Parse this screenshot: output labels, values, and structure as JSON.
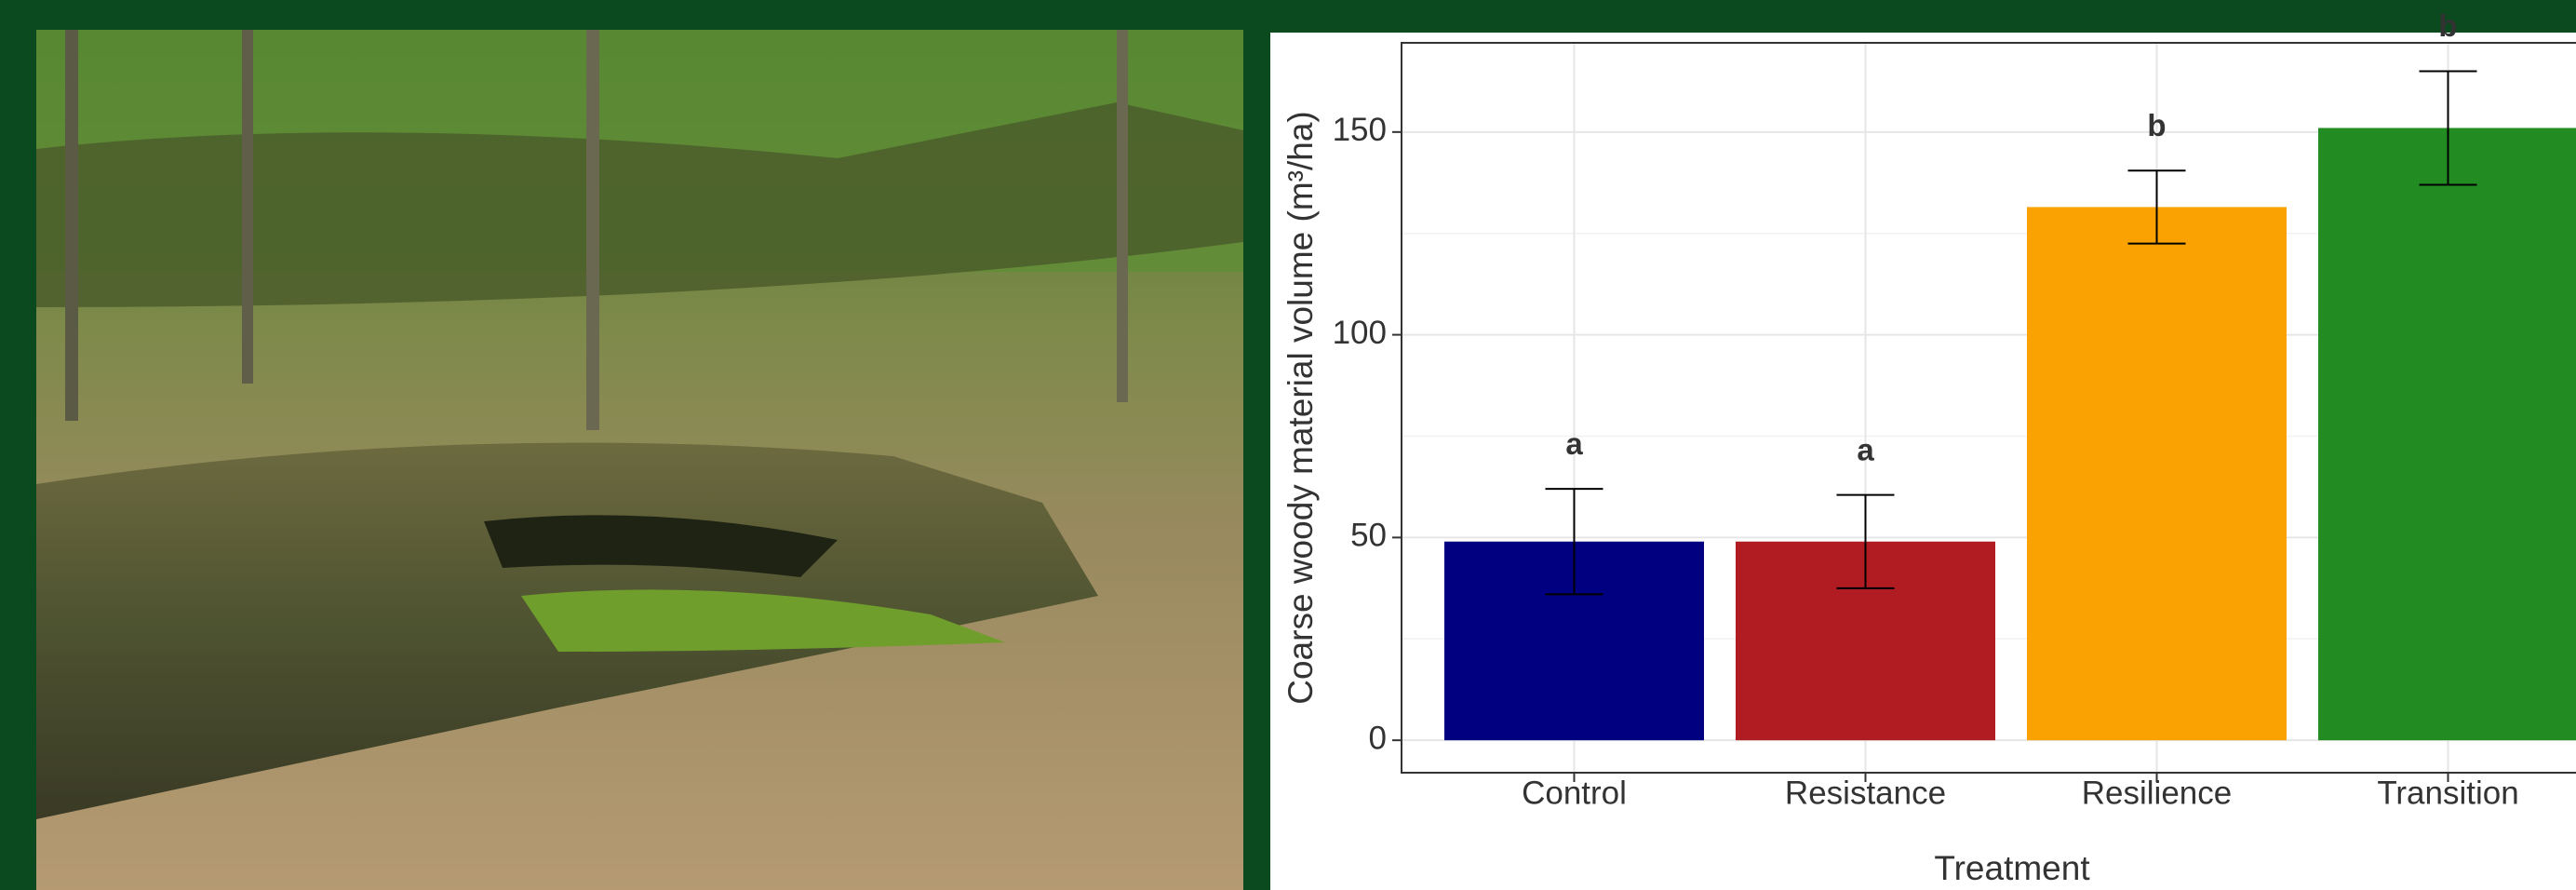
{
  "chart_data": {
    "type": "bar",
    "x_label": "Treatment",
    "y_label": "Coarse woody material volume (m³/ha)",
    "categories": [
      "Control",
      "Resistance",
      "Resilience",
      "Transition"
    ],
    "values": [
      49,
      49,
      131.5,
      151
    ],
    "errors": [
      13,
      11.5,
      9,
      14
    ],
    "group_labels": [
      "a",
      "a",
      "b",
      "b"
    ],
    "colors": [
      "#000080",
      "#b01c22",
      "#f9a202",
      "#228b22"
    ],
    "ylim": [
      -8,
      172
    ],
    "yticks": [
      0,
      50,
      100,
      150
    ],
    "minor_yticks": [
      25,
      75,
      125
    ],
    "grid": true
  }
}
